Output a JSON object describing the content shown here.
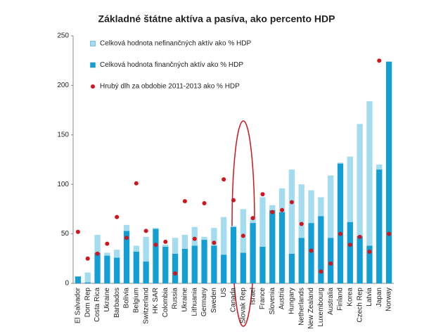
{
  "chart_data": {
    "type": "bar",
    "title": "Základné štátne aktíva a pasíva, ako percento HDP",
    "categories": [
      "El Salvador",
      "Dom Rep",
      "Costa Rica",
      "Ukraine",
      "Barbados",
      "Bolivia",
      "Belgium",
      "Switzerland",
      "HK SAR",
      "Colombia",
      "Russia",
      "Ukraine",
      "Lithuania",
      "Germany",
      "Sweden",
      "US",
      "Canada",
      "Slovak Rep",
      "Israel",
      "France",
      "Slovenia",
      "Austria",
      "Hungary",
      "Netherlands",
      "New Zealand",
      "Luxembourg",
      "Australia",
      "Finland",
      "Korea",
      "Czech Rep",
      "Latvia",
      "Japan",
      "Norway"
    ],
    "series": [
      {
        "name": "Celková hodnota nefinančných aktív ako % HDP",
        "color": "#a3dbef",
        "type": "bar",
        "values": [
          0,
          10,
          18,
          3,
          8,
          6,
          6,
          25,
          1,
          2,
          16,
          14,
          19,
          3,
          18,
          38,
          1,
          44,
          6,
          50,
          5,
          24,
          85,
          54,
          33,
          19,
          63,
          1,
          66,
          113,
          146,
          5,
          0
        ]
      },
      {
        "name": "Celková hodnota finančných aktív ako % HDP",
        "color": "#139fd3",
        "type": "bar",
        "values": [
          7,
          1,
          31,
          28,
          26,
          53,
          32,
          22,
          55,
          37,
          30,
          35,
          38,
          44,
          38,
          29,
          57,
          31,
          61,
          37,
          74,
          72,
          30,
          46,
          61,
          68,
          46,
          121,
          62,
          48,
          38,
          115,
          224
        ]
      },
      {
        "name": "Hrubý dlh za obdobie 2011-2013 ako % HDP",
        "color": "#d0161c",
        "type": "scatter",
        "values": [
          52,
          25,
          30,
          40,
          67,
          46,
          101,
          53,
          39,
          42,
          10,
          83,
          45,
          81,
          41,
          105,
          84,
          48,
          66,
          90,
          72,
          74,
          82,
          60,
          33,
          12,
          20,
          50,
          39,
          47,
          32,
          225,
          50
        ]
      }
    ],
    "ylim": [
      0,
      250
    ],
    "yticks": [
      0,
      50,
      100,
      150,
      200,
      250
    ],
    "grid": false,
    "legend": "top-left"
  }
}
